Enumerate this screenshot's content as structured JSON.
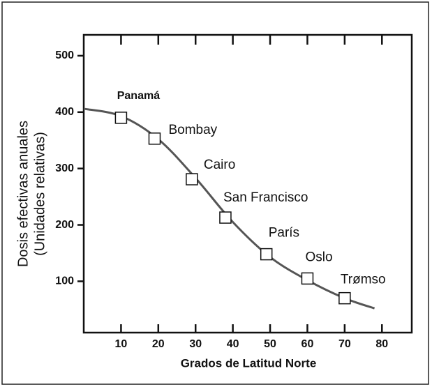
{
  "chart_data": {
    "type": "scatter",
    "xlabel": "Grados de Latitud Norte",
    "ylabel": [
      "Dosis efectivas anuales",
      "(Unidades relativas)"
    ],
    "xlim": [
      0,
      88
    ],
    "xticks": [
      10,
      20,
      30,
      40,
      50,
      60,
      70,
      80
    ],
    "ylim": [
      9,
      537
    ],
    "yticks": [
      100,
      200,
      300,
      400,
      500
    ],
    "points": {
      "labels": [
        "Panamá",
        "Bombay",
        "Cairo",
        "San Francisco",
        "París",
        "Oslo",
        "Trømso"
      ],
      "x": [
        10,
        19,
        29,
        38,
        49,
        60,
        70
      ],
      "values": [
        390,
        353,
        281,
        213,
        148,
        105,
        70
      ]
    },
    "curve": {
      "color": "#555555",
      "x": [
        0,
        10,
        20,
        30,
        40,
        50,
        60,
        70,
        78
      ],
      "values": [
        406,
        393,
        352,
        283,
        205,
        143,
        102,
        70,
        52
      ]
    }
  }
}
